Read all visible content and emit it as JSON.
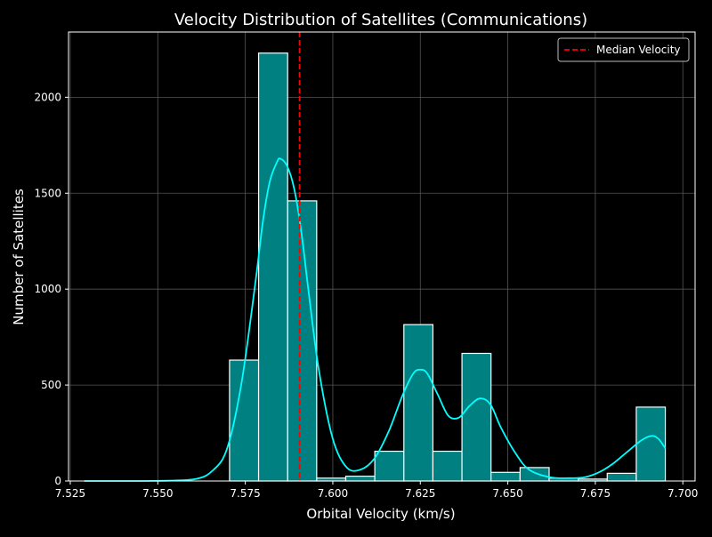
{
  "chart_data": {
    "type": "histogram",
    "title": "Velocity Distribution of Satellites (Communications)",
    "xlabel": "Orbital Velocity (km/s)",
    "ylabel": "Number of Satellites",
    "xlim": [
      7.5245,
      7.7035
    ],
    "ylim": [
      0,
      2340
    ],
    "xticks": [
      7.525,
      7.55,
      7.575,
      7.6,
      7.625,
      7.65,
      7.675,
      7.7
    ],
    "xtick_labels": [
      "7.525",
      "7.550",
      "7.575",
      "7.600",
      "7.625",
      "7.650",
      "7.675",
      "7.700"
    ],
    "yticks": [
      0,
      500,
      1000,
      1500,
      2000
    ],
    "ytick_labels": [
      "0",
      "500",
      "1000",
      "1500",
      "2000"
    ],
    "grid": true,
    "legend_placement": "top-right",
    "legend": [
      {
        "label": "Median Velocity",
        "color": "#ff0000",
        "style": "dashed"
      }
    ],
    "bins": [
      {
        "x0": 7.5705,
        "x1": 7.5788,
        "count": 630
      },
      {
        "x0": 7.5788,
        "x1": 7.5871,
        "count": 2230
      },
      {
        "x0": 7.5871,
        "x1": 7.5954,
        "count": 1460
      },
      {
        "x0": 7.5954,
        "x1": 7.6037,
        "count": 15
      },
      {
        "x0": 7.6037,
        "x1": 7.612,
        "count": 25
      },
      {
        "x0": 7.612,
        "x1": 7.6203,
        "count": 155
      },
      {
        "x0": 7.6203,
        "x1": 7.6286,
        "count": 815
      },
      {
        "x0": 7.6286,
        "x1": 7.6369,
        "count": 155
      },
      {
        "x0": 7.6369,
        "x1": 7.6452,
        "count": 665
      },
      {
        "x0": 7.6452,
        "x1": 7.6535,
        "count": 45
      },
      {
        "x0": 7.6535,
        "x1": 7.6618,
        "count": 70
      },
      {
        "x0": 7.6618,
        "x1": 7.6701,
        "count": 15
      },
      {
        "x0": 7.6701,
        "x1": 7.6784,
        "count": 10
      },
      {
        "x0": 7.6784,
        "x1": 7.6867,
        "count": 40
      },
      {
        "x0": 7.6867,
        "x1": 7.695,
        "count": 385
      }
    ],
    "median": 7.5905,
    "kde": {
      "x": [
        7.529,
        7.545,
        7.56,
        7.566,
        7.57,
        7.574,
        7.578,
        7.58,
        7.582,
        7.584,
        7.585,
        7.587,
        7.589,
        7.591,
        7.593,
        7.596,
        7.6,
        7.604,
        7.608,
        7.612,
        7.616,
        7.62,
        7.623,
        7.625,
        7.627,
        7.63,
        7.633,
        7.636,
        7.639,
        7.642,
        7.645,
        7.648,
        7.652,
        7.656,
        7.662,
        7.668,
        7.672,
        7.676,
        7.68,
        7.684,
        7.688,
        7.691,
        7.693,
        7.695
      ],
      "y": [
        0,
        0,
        8,
        60,
        180,
        520,
        1050,
        1350,
        1560,
        1660,
        1680,
        1640,
        1520,
        1300,
        1000,
        580,
        220,
        70,
        60,
        120,
        260,
        450,
        560,
        580,
        560,
        450,
        340,
        330,
        390,
        430,
        400,
        280,
        150,
        60,
        20,
        15,
        20,
        45,
        90,
        150,
        210,
        235,
        220,
        170
      ]
    },
    "colors": {
      "background": "#000000",
      "bar_fill": "#008080",
      "bar_edge": "#ffffff",
      "kde_line": "#00ffff",
      "median_line": "#ff0000",
      "grid": "#555555",
      "text": "#ffffff"
    }
  }
}
